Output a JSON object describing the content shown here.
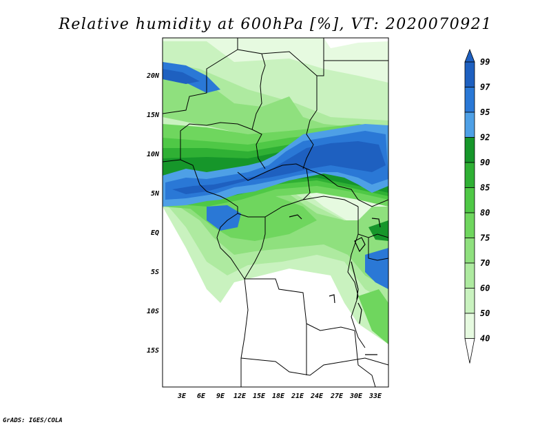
{
  "title": "Relative humidity at 600hPa [%], VT: 2020070921",
  "map": {
    "lat_labels": [
      "20N",
      "15N",
      "10N",
      "5N",
      "EQ",
      "5S",
      "10S",
      "15S"
    ],
    "lon_labels": [
      "3E",
      "6E",
      "9E",
      "12E",
      "15E",
      "18E",
      "21E",
      "24E",
      "27E",
      "30E",
      "33E"
    ]
  },
  "colorbar": {
    "levels": [
      "40",
      "50",
      "60",
      "70",
      "75",
      "80",
      "85",
      "90",
      "92",
      "95",
      "97",
      "99"
    ],
    "colors": [
      "#ffffff",
      "#e6fae0",
      "#c9f2bf",
      "#aeeaa0",
      "#8fe07e",
      "#6fd65e",
      "#4fc846",
      "#2fb034",
      "#16962a",
      "#4ea0e6",
      "#2a78d6",
      "#1e60c0"
    ]
  },
  "credit": "GrADS: IGES/COLA"
}
